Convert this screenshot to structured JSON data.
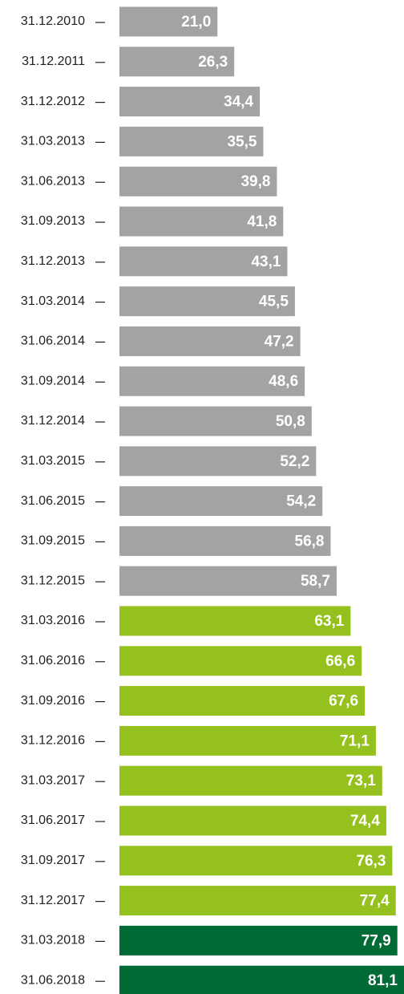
{
  "chart_data": {
    "type": "hbar",
    "categories": [
      "31.12.2010",
      "31.12.2011",
      "31.12.2012",
      "31.03.2013",
      "31.06.2013",
      "31.09.2013",
      "31.12.2013",
      "31.03.2014",
      "31.06.2014",
      "31.09.2014",
      "31.12.2014",
      "31.03.2015",
      "31.06.2015",
      "31.09.2015",
      "31.12.2015",
      "31.03.2016",
      "31.06.2016",
      "31.09.2016",
      "31.12.2016",
      "31.03.2017",
      "31.06.2017",
      "31.09.2017",
      "31.12.2017",
      "31.03.2018",
      "31.06.2018"
    ],
    "values": [
      21.0,
      26.3,
      34.4,
      35.5,
      39.8,
      41.8,
      43.1,
      45.5,
      47.2,
      48.6,
      50.8,
      52.2,
      54.2,
      56.8,
      58.7,
      63.1,
      66.6,
      67.6,
      71.1,
      73.1,
      74.4,
      76.3,
      77.4,
      77.9,
      81.1
    ],
    "value_labels": [
      "21,0",
      "26,3",
      "34,4",
      "35,5",
      "39,8",
      "41,8",
      "43,1",
      "45,5",
      "47,2",
      "48,6",
      "50,8",
      "52,2",
      "54,2",
      "56,8",
      "58,7",
      "63,1",
      "66,6",
      "67,6",
      "71,1",
      "73,1",
      "74,4",
      "76,3",
      "77,4",
      "77,9",
      "81,1"
    ],
    "colors": [
      "#a3a3a3",
      "#a3a3a3",
      "#a3a3a3",
      "#a3a3a3",
      "#a3a3a3",
      "#a3a3a3",
      "#a3a3a3",
      "#a3a3a3",
      "#a3a3a3",
      "#a3a3a3",
      "#a3a3a3",
      "#a3a3a3",
      "#a3a3a3",
      "#a3a3a3",
      "#a3a3a3",
      "#95c11f",
      "#95c11f",
      "#95c11f",
      "#95c11f",
      "#95c11f",
      "#95c11f",
      "#95c11f",
      "#95c11f",
      "#006b35",
      "#006b35"
    ],
    "xlim": [
      -10,
      80
    ]
  }
}
